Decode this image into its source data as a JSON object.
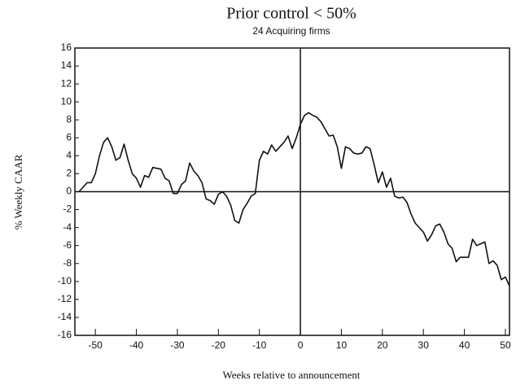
{
  "chart_data": {
    "type": "line",
    "title": "Prior control < 50%",
    "subtitle": "24 Acquiring firms",
    "x_label": "Weeks relative to announcement",
    "y_label": "% Weekly CAAR",
    "x": [
      -54,
      -53,
      -52,
      -51,
      -50,
      -49,
      -48,
      -47,
      -46,
      -45,
      -44,
      -43,
      -42,
      -41,
      -40,
      -39,
      -38,
      -37,
      -36,
      -35,
      -34,
      -33,
      -32,
      -31,
      -30,
      -29,
      -28,
      -27,
      -26,
      -25,
      -24,
      -23,
      -22,
      -21,
      -20,
      -19,
      -18,
      -17,
      -16,
      -15,
      -14,
      -13,
      -12,
      -11,
      -10,
      -9,
      -8,
      -7,
      -6,
      -5,
      -4,
      -3,
      -2,
      -1,
      0,
      1,
      2,
      3,
      4,
      5,
      6,
      7,
      8,
      9,
      10,
      11,
      12,
      13,
      14,
      15,
      16,
      17,
      18,
      19,
      20,
      21,
      22,
      23,
      24,
      25,
      26,
      27,
      28,
      29,
      30,
      31,
      32,
      33,
      34,
      35,
      36,
      37,
      38,
      39,
      40,
      41,
      42,
      43,
      44,
      45,
      46,
      47,
      48,
      49,
      50,
      51
    ],
    "series": [
      {
        "name": "CAAR",
        "color": "#111111",
        "values": [
          0,
          0.5,
          1,
          1,
          2,
          4,
          5.5,
          6,
          5,
          3.5,
          3.8,
          5.3,
          3.5,
          2,
          1.5,
          0.5,
          1.8,
          1.6,
          2.7,
          2.6,
          2.5,
          1.5,
          1.2,
          -0.2,
          -0.2,
          0.8,
          1.2,
          3.2,
          2.3,
          1.8,
          1,
          -0.8,
          -1,
          -1.4,
          -0.3,
          0,
          -0.5,
          -1.5,
          -3.2,
          -3.5,
          -2,
          -1.3,
          -0.5,
          -0.2,
          3.5,
          4.5,
          4.2,
          5.2,
          4.5,
          5,
          5.5,
          6.2,
          4.8,
          6,
          7.5,
          8.5,
          8.8,
          8.5,
          8.3,
          7.8,
          7,
          6.2,
          6.3,
          5,
          2.6,
          5,
          4.8,
          4.3,
          4.2,
          4.3,
          5,
          4.8,
          3,
          1,
          2.2,
          0.5,
          1.5,
          -0.5,
          -0.7,
          -0.6,
          -1.2,
          -2.5,
          -3.5,
          -4,
          -4.5,
          -5.5,
          -4.8,
          -3.8,
          -3.6,
          -4.5,
          -5.8,
          -6.3,
          -7.8,
          -7.3,
          -7.3,
          -7.3,
          -5.3,
          -6,
          -5.8,
          -5.6,
          -8,
          -7.7,
          -8.2,
          -9.8,
          -9.5,
          -10.5
        ]
      }
    ],
    "xlim": [
      -55,
      51
    ],
    "ylim": [
      -16,
      16
    ],
    "xticks": [
      -50,
      -40,
      -30,
      -20,
      -10,
      0,
      10,
      20,
      30,
      40,
      50
    ],
    "yticks": [
      -16,
      -14,
      -12,
      -10,
      -8,
      -6,
      -4,
      -2,
      0,
      2,
      4,
      6,
      8,
      10,
      12,
      14,
      16
    ],
    "reference_lines": {
      "x": 0,
      "y": 0
    },
    "grid": false
  }
}
